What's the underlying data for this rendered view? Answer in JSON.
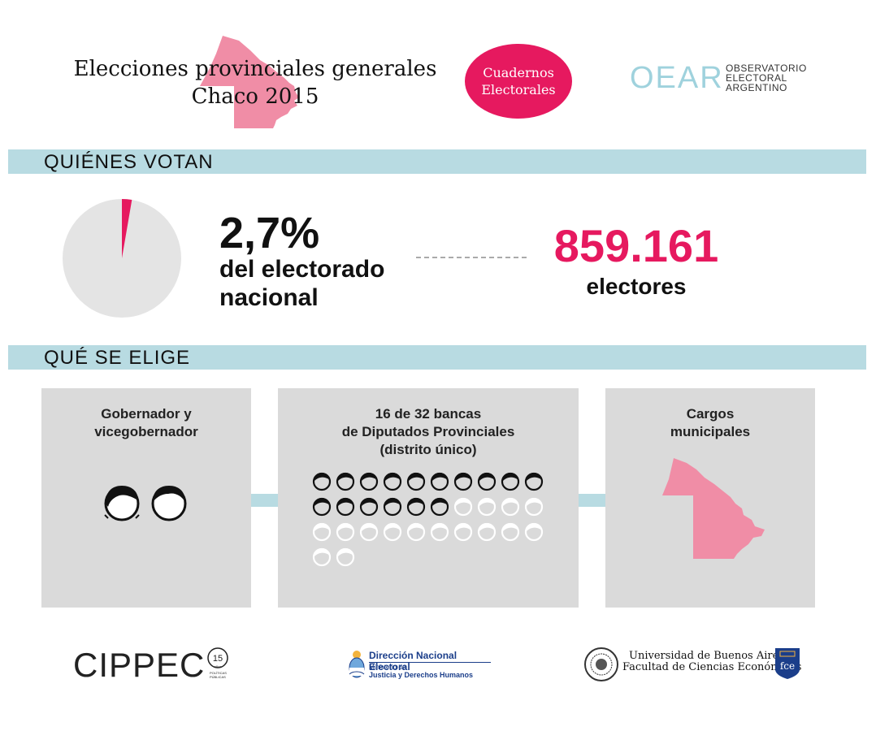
{
  "header": {
    "title_line1": "Elecciones provinciales generales",
    "title_line2": "Chaco 2015",
    "badge_line1": "Cuadernos",
    "badge_line2": "Electorales",
    "oear_acronym": "OEAR",
    "oear_line1": "OBSERVATORIO",
    "oear_line2": "ELECTORAL",
    "oear_line3": "ARGENTINO"
  },
  "quienes_votan": {
    "section_label": "QUIÉNES VOTAN",
    "percent": "2,7%",
    "percent_value": 2.7,
    "percent_label_line1": "del electorado",
    "percent_label_line2": "nacional",
    "electors_number": "859.161",
    "electors_label": "electores"
  },
  "que_se_elige": {
    "section_label": "QUÉ SE ELIGE",
    "panels": [
      {
        "title_line1": "Gobernador y",
        "title_line2": "vicegobernador"
      },
      {
        "title_line1": "16 de 32 bancas",
        "title_line2": "de Diputados Provinciales",
        "title_line3": "(distrito único)",
        "seats_elected": 16,
        "seats_total": 32
      },
      {
        "title_line1": "Cargos",
        "title_line2": "municipales"
      }
    ]
  },
  "footer": {
    "cippec_name": "CIPPEC",
    "cippec_years": "15",
    "cippec_years_label": "años",
    "cippec_tag_line1": "POLÍTICAS",
    "cippec_tag_line2": "PÚBLICAS",
    "dne_title": "Dirección Nacional Electoral",
    "dne_sub1": "Ministerio de",
    "dne_sub2": "Justicia y Derechos Humanos",
    "uba_line1": "Universidad de Buenos Aires",
    "uba_line2": "Facultad de Ciencias Económicas",
    "fce_label": "fce"
  },
  "colors": {
    "accent": "#e6195f",
    "map_pink": "#f08da6",
    "bar_blue": "#b8dbe2",
    "panel_gray": "#dadada",
    "pie_gray": "#e4e4e4"
  }
}
